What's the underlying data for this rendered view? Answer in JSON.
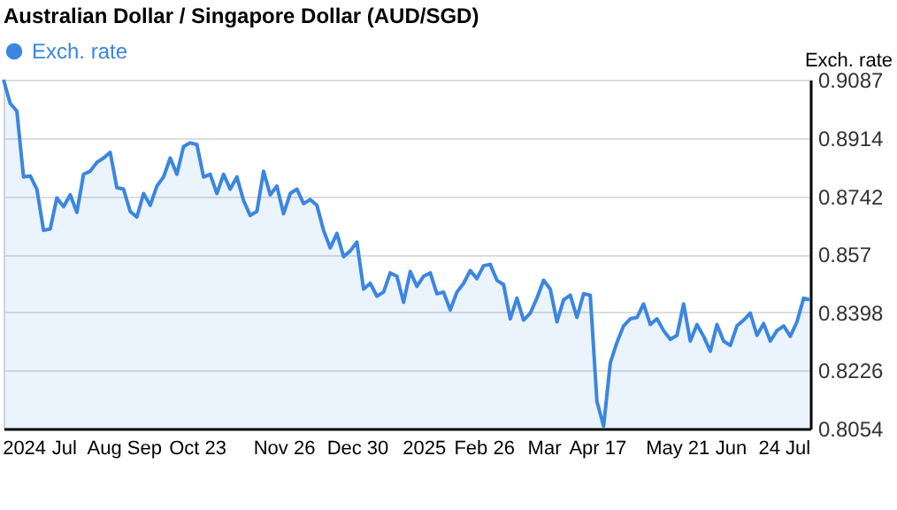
{
  "chart_data": {
    "type": "area",
    "title": "Australian Dollar / Singapore Dollar (AUD/SGD)",
    "ylabel": "Exch. rate",
    "categories": [
      null,
      null,
      null,
      "2024",
      null,
      null,
      null,
      null,
      null,
      "Jul",
      null,
      null,
      null,
      null,
      null,
      "Aug",
      null,
      null,
      null,
      null,
      null,
      "Sep",
      null,
      null,
      null,
      null,
      null,
      null,
      null,
      "Oct 23",
      null,
      null,
      null,
      null,
      null,
      null,
      null,
      null,
      null,
      null,
      null,
      null,
      "Nov 26",
      null,
      null,
      null,
      null,
      null,
      null,
      null,
      null,
      null,
      null,
      "Dec 30",
      null,
      null,
      null,
      null,
      null,
      null,
      null,
      null,
      null,
      "2025",
      null,
      null,
      null,
      null,
      null,
      null,
      null,
      null,
      "Feb 26",
      null,
      null,
      null,
      null,
      null,
      null,
      null,
      null,
      "Mar",
      null,
      null,
      null,
      null,
      null,
      null,
      null,
      "Apr 17",
      null,
      null,
      null,
      null,
      null,
      null,
      null,
      null,
      null,
      null,
      null,
      "May 21",
      null,
      null,
      null,
      null,
      null,
      null,
      null,
      "Jun",
      null,
      null,
      null,
      null,
      null,
      null,
      null,
      "24 Jul",
      null,
      null,
      null,
      null
    ],
    "series": [
      {
        "name": "Exch. rate",
        "color": "#3b86e0",
        "values": [
          0.9087,
          0.9017,
          0.8994,
          0.8799,
          0.8802,
          0.8763,
          0.8641,
          0.8645,
          0.8737,
          0.8711,
          0.8746,
          0.8694,
          0.8807,
          0.8816,
          0.8842,
          0.8855,
          0.8872,
          0.8767,
          0.8763,
          0.8697,
          0.868,
          0.875,
          0.8715,
          0.8772,
          0.8799,
          0.8855,
          0.8807,
          0.8889,
          0.89,
          0.8895,
          0.8799,
          0.8807,
          0.875,
          0.8807,
          0.8763,
          0.8799,
          0.8729,
          0.8685,
          0.8697,
          0.8816,
          0.8746,
          0.8772,
          0.869,
          0.875,
          0.8763,
          0.872,
          0.8732,
          0.8715,
          0.8641,
          0.8589,
          0.8632,
          0.8563,
          0.858,
          0.8606,
          0.8467,
          0.8484,
          0.8446,
          0.8458,
          0.8515,
          0.8505,
          0.8428,
          0.8519,
          0.8475,
          0.8505,
          0.8515,
          0.8453,
          0.8458,
          0.8405,
          0.8458,
          0.8484,
          0.8522,
          0.8498,
          0.8536,
          0.854,
          0.8493,
          0.848,
          0.8379,
          0.844,
          0.8375,
          0.8396,
          0.844,
          0.8493,
          0.8467,
          0.837,
          0.8435,
          0.8449,
          0.8383,
          0.8453,
          0.8449,
          0.8134,
          0.8061,
          0.8248,
          0.8309,
          0.8358,
          0.8379,
          0.8383,
          0.8423,
          0.8362,
          0.8379,
          0.8344,
          0.8318,
          0.833,
          0.8423,
          0.8313,
          0.8362,
          0.8327,
          0.8283,
          0.8362,
          0.8313,
          0.83,
          0.8358,
          0.8375,
          0.8396,
          0.833,
          0.8365,
          0.8313,
          0.8344,
          0.8358,
          0.8327,
          0.837,
          0.844,
          0.8435
        ]
      }
    ],
    "ylim": [
      0.8054,
      0.9087
    ],
    "yticks": [
      0.8054,
      0.8226,
      0.8398,
      0.857,
      0.8742,
      0.8914,
      0.9087
    ],
    "grid": "y",
    "legend": "top left"
  }
}
